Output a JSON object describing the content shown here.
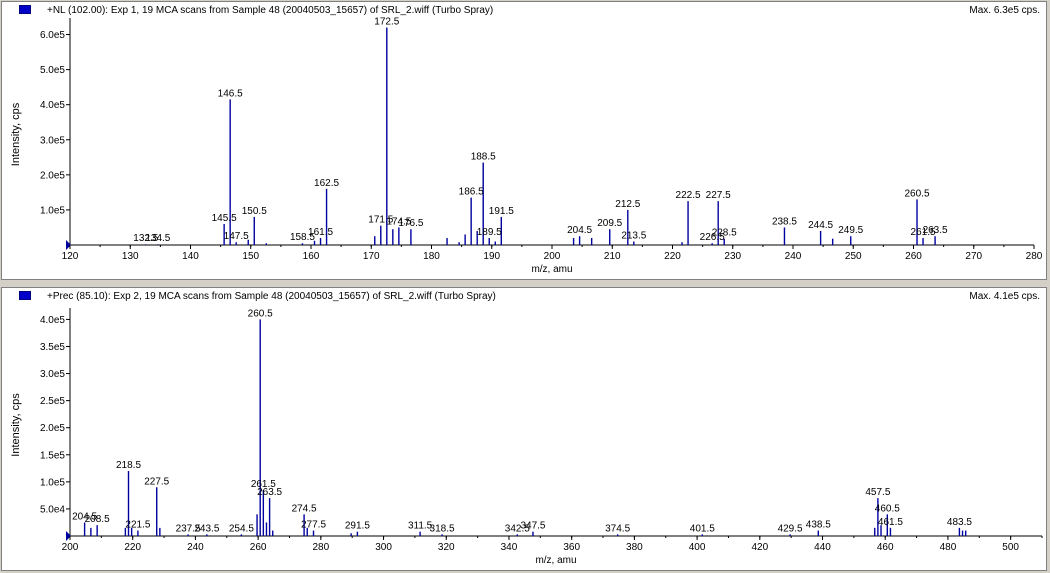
{
  "colors": {
    "series": "#0000a0",
    "axis": "#000000",
    "background": "#ffffff",
    "frame": "#d4d0c8"
  },
  "panels": [
    {
      "title": "+NL (102.00): Exp 1, 19 MCA scans from Sample 48 (20040503_15657) of SRL_2.wiff (Turbo Spray)",
      "max_label": "Max. 6.3e5 cps.",
      "legend_icon": "blue-square-icon"
    },
    {
      "title": "+Prec (85.10): Exp 2, 19 MCA scans from Sample 48 (20040503_15657) of SRL_2.wiff (Turbo Spray)",
      "max_label": "Max. 4.1e5 cps.",
      "legend_icon": "blue-square-icon"
    }
  ],
  "chart_data": [
    {
      "type": "bar",
      "subtype": "mass-spectrum-stick",
      "xlabel": "m/z, amu",
      "ylabel": "Intensity, cps",
      "xlim": [
        120,
        280
      ],
      "ylim": [
        0,
        630000
      ],
      "x_ticks": [
        120,
        130,
        140,
        150,
        160,
        170,
        180,
        190,
        200,
        210,
        220,
        230,
        240,
        250,
        260,
        270,
        280
      ],
      "x_tick_labels": [
        "120",
        "130",
        "140",
        "150",
        "160",
        "170",
        "180",
        "190",
        "200",
        "210",
        "220",
        "230",
        "240",
        "250",
        "260",
        "270",
        "280"
      ],
      "y_ticks": [
        100000,
        200000,
        300000,
        400000,
        500000,
        600000
      ],
      "y_tick_labels": [
        "1.0e5",
        "2.0e5",
        "3.0e5",
        "4.0e5",
        "5.0e5",
        "6.0e5"
      ],
      "peaks": [
        {
          "x": 132.5,
          "y": 2000
        },
        {
          "x": 134.5,
          "y": 2000
        },
        {
          "x": 145.5,
          "y": 60000
        },
        {
          "x": 146.5,
          "y": 415000
        },
        {
          "x": 147.5,
          "y": 8000
        },
        {
          "x": 149.5,
          "y": 15000
        },
        {
          "x": 150.5,
          "y": 80000
        },
        {
          "x": 152.5,
          "y": 5000
        },
        {
          "x": 158.5,
          "y": 5000
        },
        {
          "x": 160.5,
          "y": 12000
        },
        {
          "x": 161.5,
          "y": 20000
        },
        {
          "x": 162.5,
          "y": 160000
        },
        {
          "x": 170.5,
          "y": 25000
        },
        {
          "x": 171.5,
          "y": 55000
        },
        {
          "x": 172.5,
          "y": 620000
        },
        {
          "x": 173.5,
          "y": 45000
        },
        {
          "x": 174.5,
          "y": 50000
        },
        {
          "x": 176.5,
          "y": 45000
        },
        {
          "x": 182.5,
          "y": 20000
        },
        {
          "x": 184.5,
          "y": 8000
        },
        {
          "x": 185.5,
          "y": 30000
        },
        {
          "x": 186.5,
          "y": 135000
        },
        {
          "x": 187.5,
          "y": 40000
        },
        {
          "x": 188.5,
          "y": 235000
        },
        {
          "x": 189.5,
          "y": 20000
        },
        {
          "x": 190.5,
          "y": 10000
        },
        {
          "x": 191.5,
          "y": 80000
        },
        {
          "x": 203.5,
          "y": 20000
        },
        {
          "x": 204.5,
          "y": 25000
        },
        {
          "x": 206.5,
          "y": 20000
        },
        {
          "x": 209.5,
          "y": 45000
        },
        {
          "x": 212.5,
          "y": 100000
        },
        {
          "x": 213.5,
          "y": 10000
        },
        {
          "x": 221.5,
          "y": 8000
        },
        {
          "x": 222.5,
          "y": 125000
        },
        {
          "x": 226.5,
          "y": 5000
        },
        {
          "x": 227.5,
          "y": 125000
        },
        {
          "x": 228.5,
          "y": 18000
        },
        {
          "x": 238.5,
          "y": 50000
        },
        {
          "x": 244.5,
          "y": 40000
        },
        {
          "x": 246.5,
          "y": 18000
        },
        {
          "x": 249.5,
          "y": 25000
        },
        {
          "x": 260.5,
          "y": 130000
        },
        {
          "x": 261.5,
          "y": 20000
        },
        {
          "x": 263.5,
          "y": 25000
        }
      ],
      "annotations": [
        {
          "label": "132.5",
          "x": 132.5
        },
        {
          "label": "134.5",
          "x": 134.5
        },
        {
          "label": "145.5",
          "x": 145.5
        },
        {
          "label": "146.5",
          "x": 146.5
        },
        {
          "label": "147.5",
          "x": 147.5
        },
        {
          "label": "150.5",
          "x": 150.5
        },
        {
          "label": "158.5",
          "x": 158.5
        },
        {
          "label": "161.5",
          "x": 161.5
        },
        {
          "label": "162.5",
          "x": 162.5
        },
        {
          "label": "171.5",
          "x": 171.5
        },
        {
          "label": "172.5",
          "x": 172.5
        },
        {
          "label": "174.5",
          "x": 174.5
        },
        {
          "label": "176.5",
          "x": 176.5
        },
        {
          "label": "186.5",
          "x": 186.5
        },
        {
          "label": "188.5",
          "x": 188.5
        },
        {
          "label": "189.5",
          "x": 189.5
        },
        {
          "label": "191.5",
          "x": 191.5
        },
        {
          "label": "204.5",
          "x": 204.5
        },
        {
          "label": "209.5",
          "x": 209.5
        },
        {
          "label": "212.5",
          "x": 212.5
        },
        {
          "label": "213.5",
          "x": 213.5
        },
        {
          "label": "222.5",
          "x": 222.5
        },
        {
          "label": "226.5",
          "x": 226.5
        },
        {
          "label": "227.5",
          "x": 227.5
        },
        {
          "label": "228.5",
          "x": 228.5
        },
        {
          "label": "238.5",
          "x": 238.5
        },
        {
          "label": "244.5",
          "x": 244.5
        },
        {
          "label": "249.5",
          "x": 249.5
        },
        {
          "label": "260.5",
          "x": 260.5
        },
        {
          "label": "261.5",
          "x": 261.5
        },
        {
          "label": "263.5",
          "x": 263.5
        }
      ]
    },
    {
      "type": "bar",
      "subtype": "mass-spectrum-stick",
      "xlabel": "m/z, amu",
      "ylabel": "Intensity, cps",
      "xlim": [
        200,
        510
      ],
      "ylim": [
        0,
        410000
      ],
      "x_ticks": [
        200,
        220,
        240,
        260,
        280,
        300,
        320,
        340,
        360,
        380,
        400,
        420,
        440,
        460,
        480,
        500
      ],
      "x_tick_labels": [
        "200",
        "220",
        "240",
        "260",
        "280",
        "300",
        "320",
        "340",
        "360",
        "380",
        "400",
        "420",
        "440",
        "460",
        "480",
        "500"
      ],
      "y_ticks": [
        50000,
        100000,
        150000,
        200000,
        250000,
        300000,
        350000,
        400000
      ],
      "y_tick_labels": [
        "5.0e4",
        "1.0e5",
        "1.5e5",
        "2.0e5",
        "2.5e5",
        "3.0e5",
        "3.5e5",
        "4.0e5"
      ],
      "peaks": [
        {
          "x": 204.5,
          "y": 25000
        },
        {
          "x": 206.5,
          "y": 15000
        },
        {
          "x": 208.5,
          "y": 20000
        },
        {
          "x": 217.5,
          "y": 15000
        },
        {
          "x": 218.5,
          "y": 120000
        },
        {
          "x": 219.5,
          "y": 15000
        },
        {
          "x": 221.5,
          "y": 10000
        },
        {
          "x": 227.5,
          "y": 90000
        },
        {
          "x": 228.5,
          "y": 15000
        },
        {
          "x": 237.5,
          "y": 3000
        },
        {
          "x": 243.5,
          "y": 3000
        },
        {
          "x": 254.5,
          "y": 3000
        },
        {
          "x": 259.5,
          "y": 40000
        },
        {
          "x": 260.5,
          "y": 400000
        },
        {
          "x": 261.5,
          "y": 85000
        },
        {
          "x": 262.5,
          "y": 25000
        },
        {
          "x": 263.5,
          "y": 70000
        },
        {
          "x": 264.5,
          "y": 10000
        },
        {
          "x": 274.5,
          "y": 40000
        },
        {
          "x": 275.5,
          "y": 15000
        },
        {
          "x": 277.5,
          "y": 10000
        },
        {
          "x": 289.5,
          "y": 5000
        },
        {
          "x": 291.5,
          "y": 8000
        },
        {
          "x": 311.5,
          "y": 8000
        },
        {
          "x": 318.5,
          "y": 3000
        },
        {
          "x": 342.5,
          "y": 3000
        },
        {
          "x": 347.5,
          "y": 8000
        },
        {
          "x": 374.5,
          "y": 3000
        },
        {
          "x": 401.5,
          "y": 3000
        },
        {
          "x": 429.5,
          "y": 3000
        },
        {
          "x": 438.5,
          "y": 10000
        },
        {
          "x": 456.5,
          "y": 15000
        },
        {
          "x": 457.5,
          "y": 70000
        },
        {
          "x": 458.5,
          "y": 20000
        },
        {
          "x": 460.5,
          "y": 40000
        },
        {
          "x": 461.5,
          "y": 15000
        },
        {
          "x": 483.5,
          "y": 15000
        },
        {
          "x": 484.5,
          "y": 10000
        },
        {
          "x": 485.5,
          "y": 10000
        }
      ],
      "annotations": [
        {
          "label": "204.5",
          "x": 204.5
        },
        {
          "label": "208.5",
          "x": 208.5
        },
        {
          "label": "218.5",
          "x": 218.5
        },
        {
          "label": "221.5",
          "x": 221.5
        },
        {
          "label": "227.5",
          "x": 227.5
        },
        {
          "label": "237.5",
          "x": 237.5
        },
        {
          "label": "243.5",
          "x": 243.5
        },
        {
          "label": "254.5",
          "x": 254.5
        },
        {
          "label": "260.5",
          "x": 260.5
        },
        {
          "label": "261.5",
          "x": 261.5
        },
        {
          "label": "263.5",
          "x": 263.5
        },
        {
          "label": "274.5",
          "x": 274.5
        },
        {
          "label": "277.5",
          "x": 277.5
        },
        {
          "label": "291.5",
          "x": 291.5
        },
        {
          "label": "311.5",
          "x": 311.5
        },
        {
          "label": "318.5",
          "x": 318.5
        },
        {
          "label": "342.5",
          "x": 342.5
        },
        {
          "label": "347.5",
          "x": 347.5
        },
        {
          "label": "374.5",
          "x": 374.5
        },
        {
          "label": "401.5",
          "x": 401.5
        },
        {
          "label": "429.5",
          "x": 429.5
        },
        {
          "label": "438.5",
          "x": 438.5
        },
        {
          "label": "457.5",
          "x": 457.5
        },
        {
          "label": "460.5",
          "x": 460.5
        },
        {
          "label": "461.5",
          "x": 461.5
        },
        {
          "label": "483.5",
          "x": 483.5
        }
      ]
    }
  ]
}
